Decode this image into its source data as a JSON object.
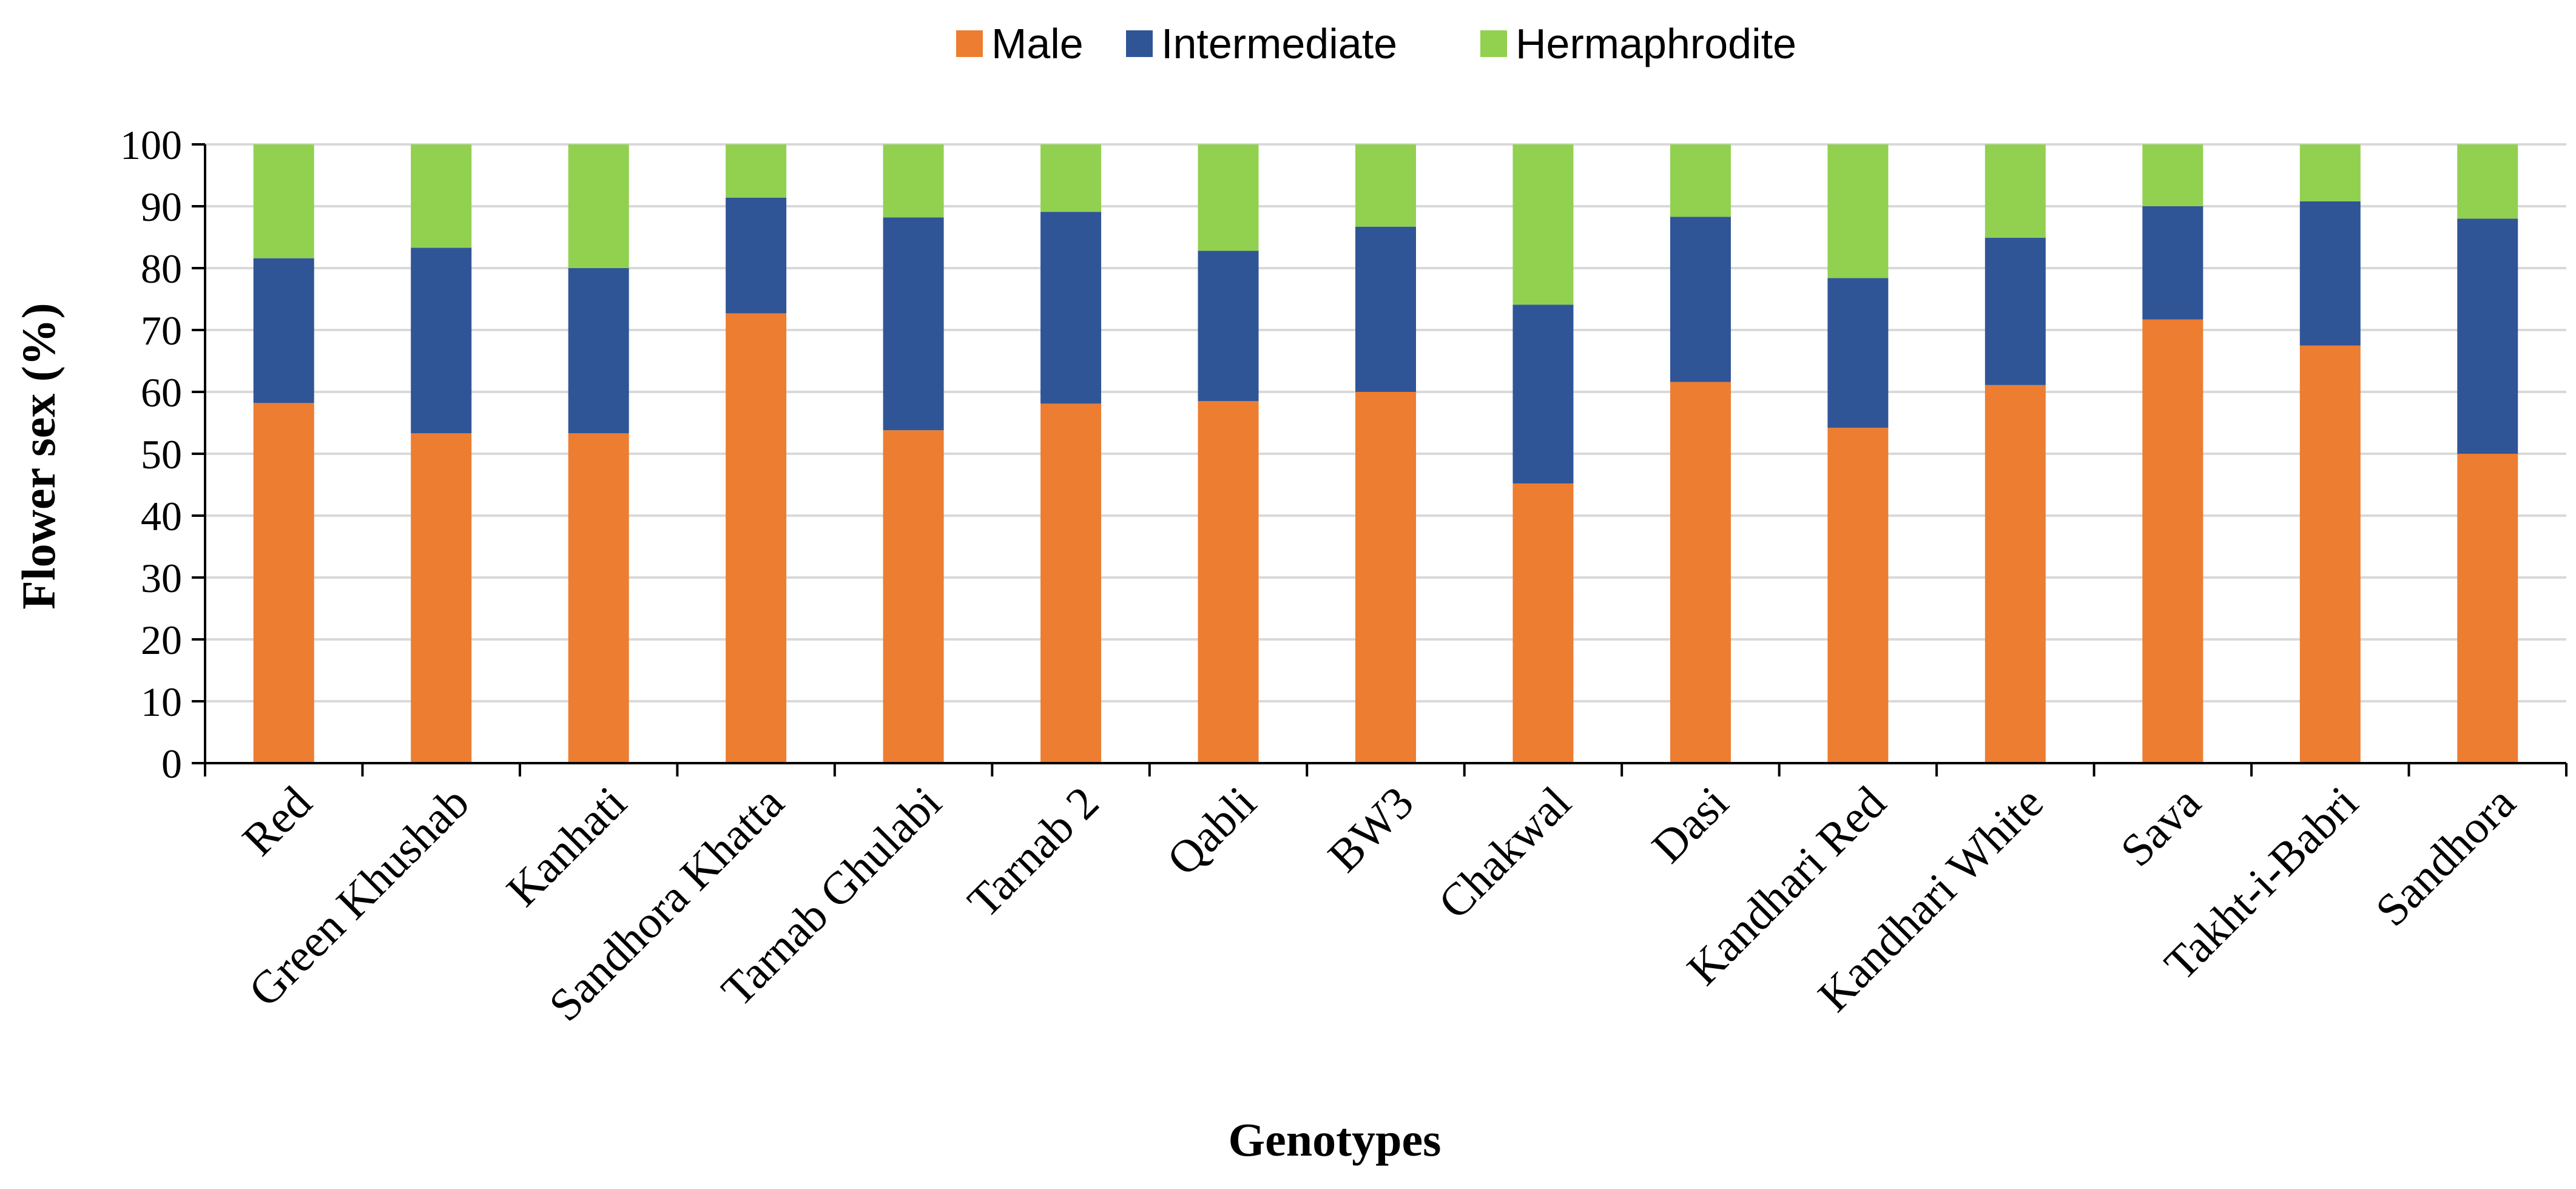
{
  "chart_data": {
    "type": "bar",
    "stacked": true,
    "title": "",
    "xlabel": "Genotypes",
    "ylabel": "Flower sex (%)",
    "ylim": [
      0,
      100
    ],
    "yticks": [
      "0",
      "10",
      "20",
      "30",
      "40",
      "50",
      "60",
      "70",
      "80",
      "90",
      "100"
    ],
    "grid": true,
    "legend_position": "top-center",
    "categories": [
      "Red",
      "Green Khushab",
      "Kanhati",
      "Sandhora Khatta",
      "Tarnab Ghulabi",
      "Tarnab 2",
      "Qabli",
      "BW3",
      "Chakwal",
      "Dasi",
      "Kandhari Red",
      "Kandhari White",
      "Sava",
      "Takht-i-Babri",
      "Sandhora"
    ],
    "series": [
      {
        "name": "Male",
        "color": "#ED7D31",
        "values": [
          58.2,
          53.3,
          53.3,
          72.7,
          53.8,
          58.1,
          58.5,
          60.0,
          45.2,
          61.6,
          54.2,
          61.1,
          71.7,
          67.5,
          50.0
        ]
      },
      {
        "name": "Intermediate",
        "color": "#2F5597",
        "values": [
          23.4,
          30.0,
          26.7,
          18.7,
          34.4,
          31.0,
          24.3,
          26.7,
          28.9,
          26.7,
          24.2,
          23.8,
          18.3,
          23.3,
          38.0
        ]
      },
      {
        "name": "Hermaphrodite",
        "color": "#92D050",
        "values": [
          18.4,
          16.7,
          20.0,
          8.6,
          11.8,
          10.9,
          17.2,
          13.3,
          25.9,
          11.7,
          21.6,
          15.1,
          10.0,
          9.2,
          12.0
        ]
      }
    ]
  }
}
